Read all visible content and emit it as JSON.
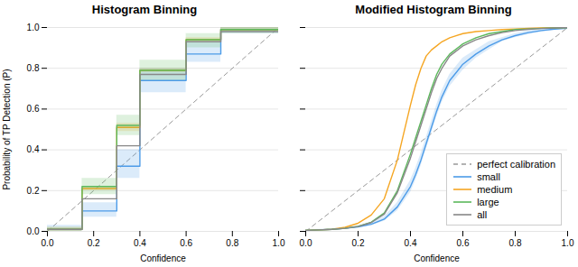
{
  "chart_data": [
    {
      "type": "step",
      "title": "Histogram Binning",
      "xlabel": "Confidence",
      "ylabel": "Probability of TP Detection (P)",
      "bins": [
        0.0,
        0.15,
        0.3,
        0.4,
        0.6,
        0.75,
        1.0
      ],
      "series": [
        {
          "name": "perfect calibration",
          "type": "line",
          "line_style": "dashed",
          "color": "#999999",
          "x": [
            0,
            1
          ],
          "values": [
            0,
            1
          ]
        },
        {
          "name": "small",
          "color": "#4C9BE8",
          "values": [
            0.01,
            0.1,
            0.32,
            0.74,
            0.87,
            0.99
          ],
          "lo": [
            0.0,
            0.07,
            0.26,
            0.68,
            0.83,
            0.97
          ],
          "hi": [
            0.03,
            0.14,
            0.4,
            0.8,
            0.93,
            1.0
          ]
        },
        {
          "name": "medium",
          "color": "#F5A623",
          "values": [
            0.01,
            0.21,
            0.51,
            0.79,
            0.94,
            0.99
          ],
          "lo": [
            0.0,
            0.2,
            0.49,
            0.78,
            0.93,
            0.98
          ],
          "hi": [
            0.02,
            0.22,
            0.53,
            0.8,
            0.95,
            1.0
          ]
        },
        {
          "name": "large",
          "color": "#5CB85C",
          "values": [
            0.01,
            0.22,
            0.52,
            0.79,
            0.94,
            0.99
          ],
          "lo": [
            0.0,
            0.18,
            0.47,
            0.74,
            0.9,
            0.97
          ],
          "hi": [
            0.02,
            0.26,
            0.57,
            0.84,
            0.97,
            1.0
          ]
        },
        {
          "name": "all",
          "color": "#888888",
          "values": [
            0.01,
            0.16,
            0.42,
            0.77,
            0.93,
            0.98
          ]
        }
      ],
      "xlim": [
        0,
        1
      ],
      "ylim": [
        0,
        1
      ],
      "xticks": [
        {
          "value": 0,
          "label": "0.0"
        },
        0.2,
        0.4,
        0.6,
        0.8,
        {
          "value": 1,
          "label": "1.0"
        }
      ],
      "yticks": [
        {
          "value": 0,
          "label": "0.0"
        },
        0.2,
        0.4,
        0.6,
        0.8,
        {
          "value": 1,
          "label": "1.0"
        }
      ],
      "grid": true
    },
    {
      "type": "line",
      "title": "Modified Histogram Binning",
      "xlabel": "Confidence",
      "x": [
        0.0,
        0.05,
        0.1,
        0.15,
        0.2,
        0.25,
        0.3,
        0.35,
        0.4,
        0.42,
        0.44,
        0.46,
        0.48,
        0.5,
        0.52,
        0.55,
        0.6,
        0.65,
        0.7,
        0.75,
        0.8,
        0.85,
        0.9,
        0.95,
        1.0
      ],
      "series": [
        {
          "name": "perfect calibration",
          "line_style": "dashed",
          "color": "#999999",
          "x": [
            0,
            1
          ],
          "values": [
            0,
            1
          ]
        },
        {
          "name": "small",
          "color": "#4C9BE8",
          "values": [
            0.005,
            0.007,
            0.01,
            0.015,
            0.022,
            0.035,
            0.06,
            0.12,
            0.22,
            0.28,
            0.35,
            0.43,
            0.51,
            0.59,
            0.66,
            0.74,
            0.82,
            0.87,
            0.91,
            0.94,
            0.96,
            0.975,
            0.985,
            0.992,
            0.997
          ],
          "lo": [
            0.003,
            0.005,
            0.008,
            0.012,
            0.018,
            0.028,
            0.05,
            0.1,
            0.19,
            0.25,
            0.32,
            0.4,
            0.48,
            0.56,
            0.63,
            0.71,
            0.79,
            0.85,
            0.89,
            0.93,
            0.95,
            0.965,
            0.978,
            0.988,
            0.995
          ],
          "hi": [
            0.008,
            0.01,
            0.013,
            0.019,
            0.027,
            0.043,
            0.072,
            0.14,
            0.25,
            0.31,
            0.38,
            0.46,
            0.54,
            0.62,
            0.69,
            0.77,
            0.85,
            0.89,
            0.93,
            0.95,
            0.97,
            0.985,
            0.992,
            0.996,
            0.999
          ]
        },
        {
          "name": "medium",
          "color": "#F5A623",
          "values": [
            0.005,
            0.007,
            0.01,
            0.02,
            0.04,
            0.08,
            0.16,
            0.35,
            0.62,
            0.72,
            0.8,
            0.86,
            0.89,
            0.91,
            0.93,
            0.95,
            0.97,
            0.98,
            0.985,
            0.99,
            0.993,
            0.996,
            0.998,
            0.999,
            1.0
          ]
        },
        {
          "name": "large",
          "color": "#5CB85C",
          "values": [
            0.005,
            0.007,
            0.01,
            0.015,
            0.025,
            0.045,
            0.09,
            0.2,
            0.38,
            0.46,
            0.54,
            0.62,
            0.7,
            0.77,
            0.82,
            0.87,
            0.92,
            0.95,
            0.97,
            0.98,
            0.99,
            0.993,
            0.996,
            0.998,
            1.0
          ]
        },
        {
          "name": "all",
          "color": "#888888",
          "values": [
            0.005,
            0.007,
            0.01,
            0.015,
            0.024,
            0.043,
            0.085,
            0.19,
            0.36,
            0.44,
            0.52,
            0.6,
            0.68,
            0.75,
            0.8,
            0.86,
            0.91,
            0.94,
            0.96,
            0.975,
            0.985,
            0.991,
            0.995,
            0.998,
            1.0
          ]
        }
      ],
      "xlim": [
        0,
        1
      ],
      "ylim": [
        0,
        1
      ],
      "xticks": [
        {
          "value": 0,
          "label": "0.0"
        },
        0.2,
        0.4,
        0.6,
        0.8,
        {
          "value": 1,
          "label": "1.0"
        }
      ],
      "yticks": [
        {
          "value": 0,
          "label": "0.0"
        },
        0.2,
        0.4,
        0.6,
        0.8,
        {
          "value": 1,
          "label": "1.0"
        }
      ],
      "tick_labels": "x",
      "grid": true,
      "legend": "lower right"
    }
  ]
}
